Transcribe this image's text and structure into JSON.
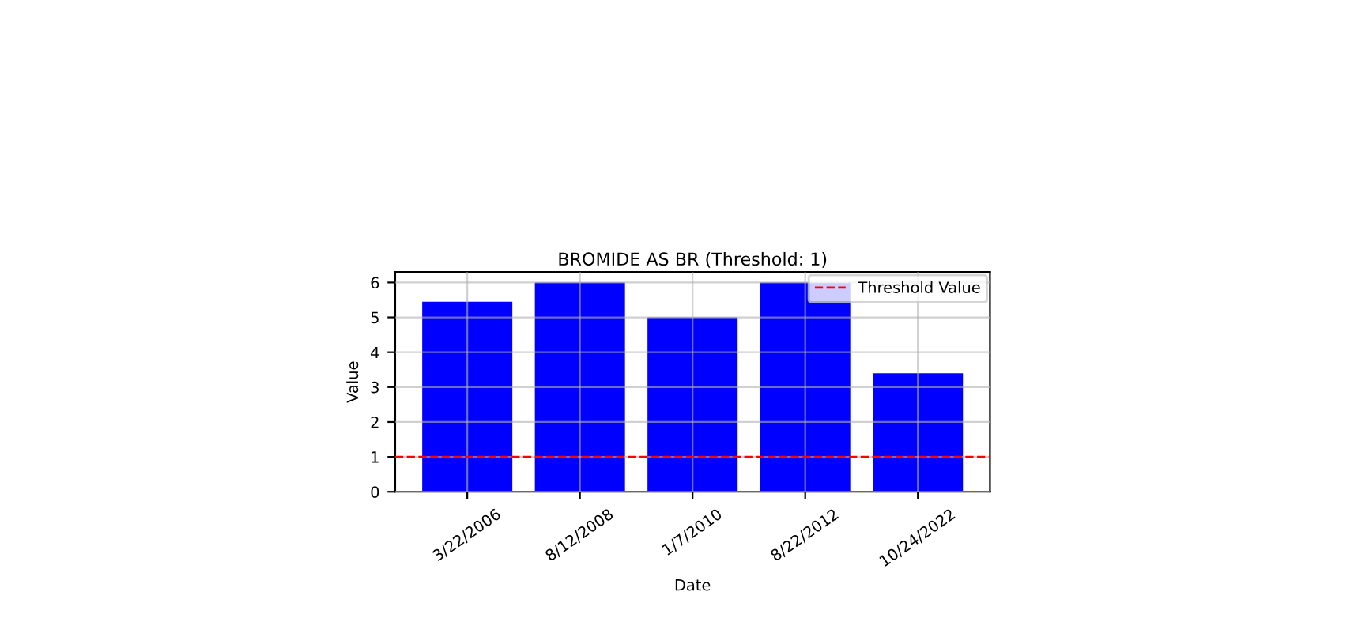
{
  "chart_data": {
    "type": "bar",
    "title": "BROMIDE AS BR (Threshold: 1)",
    "xlabel": "Date",
    "ylabel": "Value",
    "categories": [
      "3/22/2006",
      "8/12/2008",
      "1/7/2010",
      "8/22/2012",
      "10/24/2022"
    ],
    "series": [
      {
        "color": "#0000ff",
        "values": [
          5.45,
          6.0,
          5.0,
          6.0,
          3.4
        ]
      }
    ],
    "ylim": [
      0,
      6.3
    ],
    "yticks": [
      0,
      1,
      2,
      3,
      4,
      5,
      6
    ],
    "grid": true,
    "legend": "top right",
    "ref_lines": [
      {
        "axis": "y",
        "value": 1,
        "label": "Threshold Value",
        "color": "#ff0000",
        "line_style": "dashed"
      }
    ]
  }
}
